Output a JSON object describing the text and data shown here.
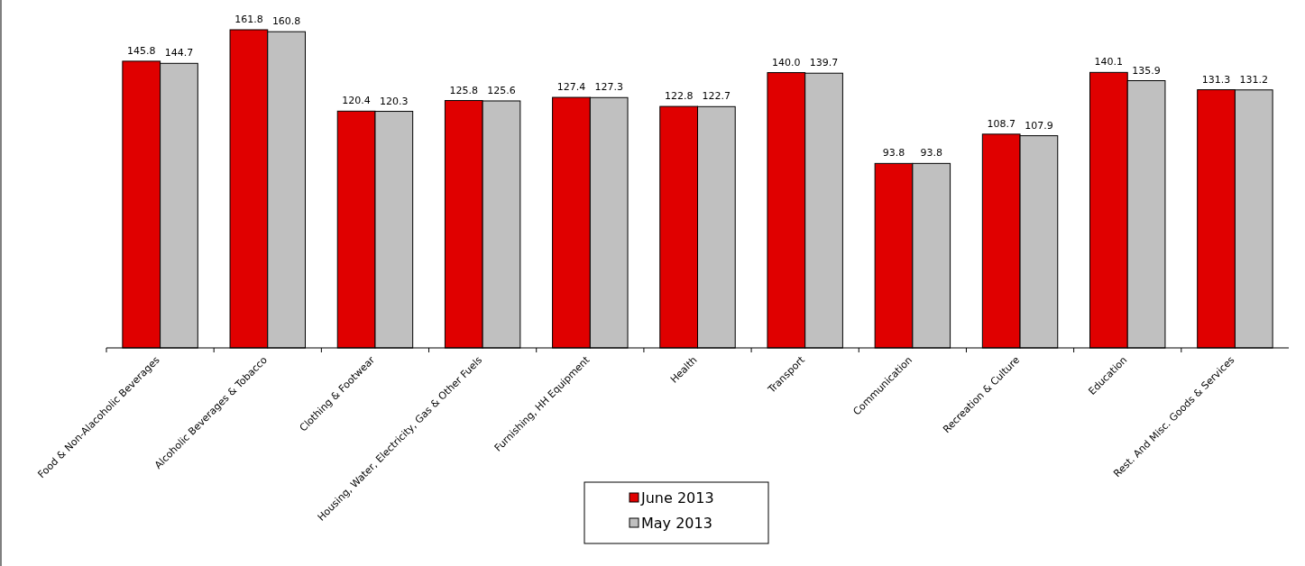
{
  "chart_data": {
    "type": "bar",
    "categories": [
      "Food & Non-Alacoholic Beverages",
      "Alcoholic Beverages & Tobacco",
      "Clothing & Footwear",
      "Housing, Water, Electricity, Gas & Other Fuels",
      "Furnishing, HH Equipment",
      "Health",
      "Transport",
      "Communication",
      "Recreation & Culture",
      "Education",
      "Rest. And Misc. Goods & Services"
    ],
    "series": [
      {
        "name": "June 2013",
        "color": "#e00000",
        "values": [
          145.8,
          161.8,
          120.4,
          125.8,
          127.4,
          122.8,
          140.0,
          93.8,
          108.7,
          140.1,
          131.3
        ],
        "value_labels": [
          "145.8",
          "161.8",
          "120.4",
          "125.8",
          "127.4",
          "122.8",
          "140.0",
          "93.8",
          "108.7",
          "140.1",
          "131.3"
        ]
      },
      {
        "name": "May 2013",
        "color": "#c0c0c0",
        "values": [
          144.7,
          160.8,
          120.3,
          125.6,
          127.3,
          122.7,
          139.7,
          93.8,
          107.9,
          135.9,
          131.2
        ],
        "value_labels": [
          "144.7",
          "160.8",
          "120.3",
          "125.6",
          "127.3",
          "122.7",
          "139.7",
          "93.8",
          "107.9",
          "135.9",
          "131.2"
        ]
      }
    ],
    "legend": "bottom"
  }
}
